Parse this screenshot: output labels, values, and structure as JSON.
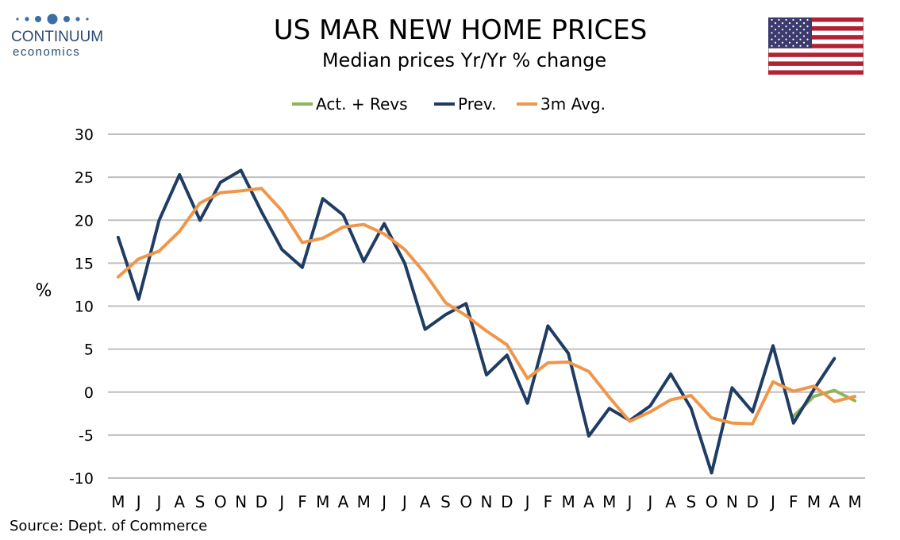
{
  "brand": {
    "name": "CONTINUUM",
    "sub": "economics"
  },
  "flag_icon": "us-flag-icon",
  "chart_data": {
    "type": "line",
    "title": "US MAR NEW HOME PRICES",
    "subtitle": "Median prices Yr/Yr % change",
    "ylabel": "%",
    "xlabel": "",
    "ylim": [
      -10,
      30
    ],
    "yticks": [
      30,
      25,
      20,
      15,
      10,
      5,
      0,
      -5,
      -10
    ],
    "grid": true,
    "legend_position": "top",
    "categories": [
      "M",
      "J",
      "J",
      "A",
      "S",
      "O",
      "N",
      "D",
      "J",
      "F",
      "M",
      "A",
      "M",
      "J",
      "J",
      "A",
      "S",
      "O",
      "N",
      "D",
      "J",
      "F",
      "M",
      "A",
      "M",
      "J",
      "J",
      "A",
      "S",
      "O",
      "N",
      "D",
      "J",
      "F",
      "M",
      "A",
      "M"
    ],
    "series": [
      {
        "name": "Act. + Revs",
        "color": "#8db55a",
        "values": [
          null,
          null,
          null,
          null,
          null,
          null,
          null,
          null,
          null,
          null,
          null,
          null,
          null,
          null,
          null,
          null,
          null,
          null,
          null,
          null,
          null,
          null,
          null,
          null,
          null,
          null,
          null,
          null,
          null,
          null,
          null,
          null,
          null,
          -2.8,
          -0.5,
          0.2,
          -1.0
        ]
      },
      {
        "name": "Prev.",
        "color": "#1f3c64",
        "values": [
          18.0,
          10.8,
          20.0,
          25.3,
          20.0,
          24.4,
          25.8,
          21.0,
          16.6,
          14.5,
          22.5,
          20.6,
          15.2,
          19.6,
          15.0,
          7.3,
          9.0,
          10.3,
          2.0,
          4.3,
          -1.3,
          7.7,
          4.5,
          -5.1,
          -1.9,
          -3.3,
          -1.6,
          2.1,
          -1.9,
          -9.4,
          0.5,
          -2.3,
          5.4,
          -3.6,
          0.3,
          3.9,
          null
        ]
      },
      {
        "name": "3m Avg.",
        "color": "#f0964a",
        "values": [
          13.4,
          15.5,
          16.4,
          18.7,
          22.0,
          23.2,
          23.4,
          23.7,
          21.1,
          17.4,
          17.9,
          19.2,
          19.5,
          18.4,
          16.6,
          13.8,
          10.4,
          8.9,
          7.1,
          5.5,
          1.6,
          3.4,
          3.5,
          2.4,
          -0.6,
          -3.4,
          -2.3,
          -0.9,
          -0.4,
          -3.0,
          -3.6,
          -3.7,
          1.2,
          0.1,
          0.7,
          -1.1,
          -0.5
        ]
      }
    ]
  },
  "source": "Source: Dept. of Commerce"
}
